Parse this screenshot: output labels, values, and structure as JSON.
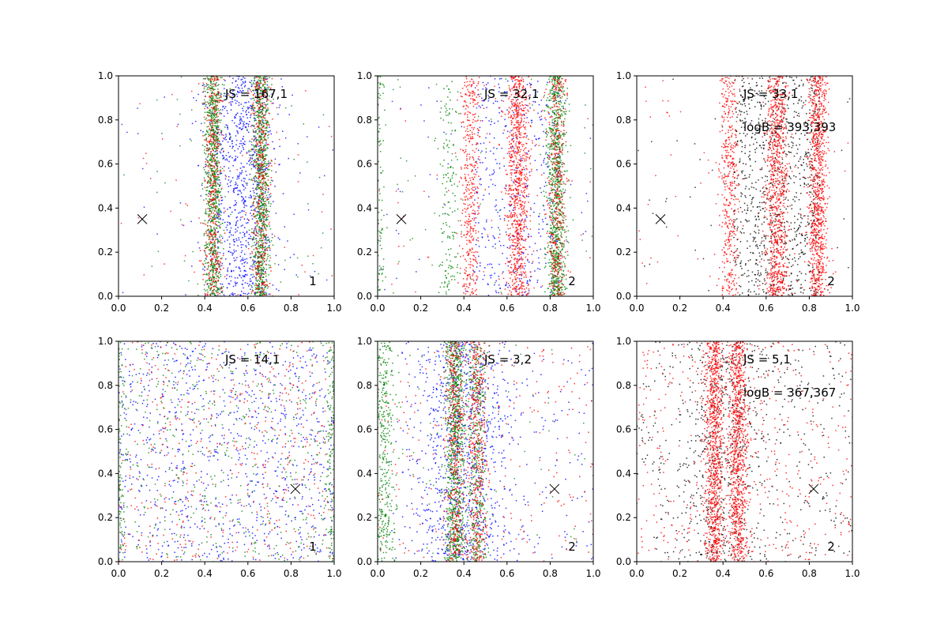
{
  "figure": {
    "background": "#ffffff",
    "layout": "2x3 grid"
  },
  "chart_data": [
    {
      "type": "scatter",
      "xlim": [
        0,
        1
      ],
      "ylim": [
        0,
        1
      ],
      "xticks": [
        "0.0",
        "0.2",
        "0.4",
        "0.6",
        "0.8",
        "1.0"
      ],
      "yticks": [
        "0.0",
        "0.2",
        "0.4",
        "0.6",
        "0.8",
        "1.0"
      ],
      "annotations": [
        "JS = 167,1"
      ],
      "corner_label": "1",
      "marker": {
        "symbol": "x",
        "x": 0.11,
        "y": 0.35
      },
      "series_colors": [
        "#0000ff",
        "#ff0000",
        "#008000"
      ],
      "bands": [
        {
          "center": 0.57,
          "width": 0.18,
          "color": "#0000ff",
          "density": "high"
        },
        {
          "center": 0.44,
          "width": 0.045,
          "color": "#008000",
          "density": "high"
        },
        {
          "center": 0.66,
          "width": 0.045,
          "color": "#008000",
          "density": "high"
        },
        {
          "center": 0.44,
          "width": 0.05,
          "color": "#ff0000",
          "density": "medium"
        },
        {
          "center": 0.66,
          "width": 0.05,
          "color": "#ff0000",
          "density": "medium"
        }
      ]
    },
    {
      "type": "scatter",
      "xlim": [
        0,
        1
      ],
      "ylim": [
        0,
        1
      ],
      "xticks": [
        "0.0",
        "0.2",
        "0.4",
        "0.6",
        "0.8",
        "1.0"
      ],
      "yticks": [
        "0.0",
        "0.2",
        "0.4",
        "0.6",
        "0.8",
        "1.0"
      ],
      "annotations": [
        "JS = 32,1"
      ],
      "corner_label": "2",
      "marker": {
        "symbol": "x",
        "x": 0.11,
        "y": 0.35
      },
      "series_colors": [
        "#0000ff",
        "#ff0000",
        "#008000"
      ],
      "bands": [
        {
          "center": 0.65,
          "width": 0.4,
          "color": "#0000ff",
          "density": "medium"
        },
        {
          "center": 0.83,
          "width": 0.05,
          "color": "#008000",
          "density": "high"
        },
        {
          "center": 0.33,
          "width": 0.05,
          "color": "#008000",
          "density": "low"
        },
        {
          "center": 0.0,
          "width": 0.03,
          "color": "#008000",
          "density": "low"
        },
        {
          "center": 0.43,
          "width": 0.05,
          "color": "#ff0000",
          "density": "medium"
        },
        {
          "center": 0.65,
          "width": 0.06,
          "color": "#ff0000",
          "density": "high"
        },
        {
          "center": 0.83,
          "width": 0.05,
          "color": "#ff0000",
          "density": "medium"
        }
      ]
    },
    {
      "type": "scatter",
      "xlim": [
        0,
        1
      ],
      "ylim": [
        0,
        1
      ],
      "xticks": [
        "0.0",
        "0.2",
        "0.4",
        "0.6",
        "0.8",
        "1.0"
      ],
      "yticks": [
        "0.0",
        "0.2",
        "0.4",
        "0.6",
        "0.8",
        "1.0"
      ],
      "annotations": [
        "JS = 33,1",
        "logB = 393,393"
      ],
      "corner_label": "2",
      "marker": {
        "symbol": "x",
        "x": 0.11,
        "y": 0.35
      },
      "series_colors": [
        "#ff0000",
        "#000000"
      ],
      "bands": [
        {
          "center": 0.65,
          "width": 0.4,
          "color": "#000000",
          "density": "high"
        },
        {
          "center": 0.43,
          "width": 0.05,
          "color": "#ff0000",
          "density": "medium"
        },
        {
          "center": 0.65,
          "width": 0.06,
          "color": "#ff0000",
          "density": "high"
        },
        {
          "center": 0.84,
          "width": 0.05,
          "color": "#ff0000",
          "density": "high"
        }
      ]
    },
    {
      "type": "scatter",
      "xlim": [
        0,
        1
      ],
      "ylim": [
        0,
        1
      ],
      "xticks": [
        "0.0",
        "0.2",
        "0.4",
        "0.6",
        "0.8",
        "1.0"
      ],
      "yticks": [
        "0.0",
        "0.2",
        "0.4",
        "0.6",
        "0.8",
        "1.0"
      ],
      "annotations": [
        "JS = 14,1"
      ],
      "corner_label": "1",
      "marker": {
        "symbol": "x",
        "x": 0.82,
        "y": 0.33
      },
      "series_colors": [
        "#0000ff",
        "#ff0000",
        "#008000"
      ],
      "bands": [
        {
          "center": 0.5,
          "width": 1.0,
          "color": "#0000ff",
          "density": "high"
        },
        {
          "center": 0.5,
          "width": 1.0,
          "color": "#ff0000",
          "density": "medium"
        },
        {
          "center": 0.5,
          "width": 1.0,
          "color": "#008000",
          "density": "medium"
        },
        {
          "center": 0.0,
          "width": 0.03,
          "color": "#008000",
          "density": "low"
        },
        {
          "center": 0.99,
          "width": 0.03,
          "color": "#008000",
          "density": "low"
        }
      ]
    },
    {
      "type": "scatter",
      "xlim": [
        0,
        1
      ],
      "ylim": [
        0,
        1
      ],
      "xticks": [
        "0.0",
        "0.2",
        "0.4",
        "0.6",
        "0.8",
        "1.0"
      ],
      "yticks": [
        "0.0",
        "0.2",
        "0.4",
        "0.6",
        "0.8",
        "1.0"
      ],
      "annotations": [
        "JS = 3,2"
      ],
      "corner_label": "2",
      "marker": {
        "symbol": "x",
        "x": 0.82,
        "y": 0.33
      },
      "series_colors": [
        "#0000ff",
        "#ff0000",
        "#008000"
      ],
      "bands": [
        {
          "center": 0.4,
          "width": 0.25,
          "color": "#0000ff",
          "density": "high"
        },
        {
          "center": 0.55,
          "width": 0.9,
          "color": "#0000ff",
          "density": "low"
        },
        {
          "center": 0.36,
          "width": 0.05,
          "color": "#008000",
          "density": "high"
        },
        {
          "center": 0.46,
          "width": 0.05,
          "color": "#008000",
          "density": "medium"
        },
        {
          "center": 0.03,
          "width": 0.06,
          "color": "#008000",
          "density": "medium"
        },
        {
          "center": 0.36,
          "width": 0.05,
          "color": "#ff0000",
          "density": "medium"
        },
        {
          "center": 0.46,
          "width": 0.05,
          "color": "#ff0000",
          "density": "medium"
        },
        {
          "center": 0.5,
          "width": 1.0,
          "color": "#ff0000",
          "density": "low"
        }
      ]
    },
    {
      "type": "scatter",
      "xlim": [
        0,
        1
      ],
      "ylim": [
        0,
        1
      ],
      "xticks": [
        "0.0",
        "0.2",
        "0.4",
        "0.6",
        "0.8",
        "1.0"
      ],
      "yticks": [
        "0.0",
        "0.2",
        "0.4",
        "0.6",
        "0.8",
        "1.0"
      ],
      "annotations": [
        "JS = 5,1",
        "logB = 367,367"
      ],
      "corner_label": "2",
      "marker": {
        "symbol": "x",
        "x": 0.82,
        "y": 0.33
      },
      "series_colors": [
        "#ff0000",
        "#000000"
      ],
      "bands": [
        {
          "center": 0.5,
          "width": 1.0,
          "color": "#000000",
          "density": "medium"
        },
        {
          "center": 0.4,
          "width": 0.2,
          "color": "#000000",
          "density": "medium"
        },
        {
          "center": 0.5,
          "width": 1.0,
          "color": "#ff0000",
          "density": "medium"
        },
        {
          "center": 0.36,
          "width": 0.05,
          "color": "#ff0000",
          "density": "high"
        },
        {
          "center": 0.47,
          "width": 0.05,
          "color": "#ff0000",
          "density": "high"
        }
      ]
    }
  ]
}
